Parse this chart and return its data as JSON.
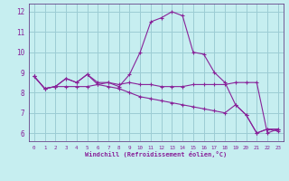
{
  "xlabel": "Windchill (Refroidissement éolien,°C)",
  "bg_color": "#c6eef0",
  "grid_color": "#9cccd4",
  "line_color": "#882299",
  "spine_color": "#664488",
  "xlim": [
    -0.5,
    23.5
  ],
  "ylim": [
    5.6,
    12.4
  ],
  "yticks": [
    6,
    7,
    8,
    9,
    10,
    11,
    12
  ],
  "xticks": [
    0,
    1,
    2,
    3,
    4,
    5,
    6,
    7,
    8,
    9,
    10,
    11,
    12,
    13,
    14,
    15,
    16,
    17,
    18,
    19,
    20,
    21,
    22,
    23
  ],
  "curves": [
    {
      "x": [
        0,
        1,
        2,
        3,
        4,
        5,
        6,
        7,
        8,
        9,
        10,
        11,
        12,
        13,
        14,
        15,
        16,
        17,
        18,
        19,
        20,
        21,
        22,
        23
      ],
      "y": [
        8.8,
        8.2,
        8.3,
        8.7,
        8.5,
        8.9,
        8.4,
        8.5,
        8.3,
        8.9,
        10.0,
        11.5,
        11.7,
        12.0,
        11.8,
        10.0,
        9.9,
        9.0,
        8.5,
        7.4,
        6.9,
        6.0,
        6.2,
        6.2
      ]
    },
    {
      "x": [
        0,
        1,
        2,
        3,
        4,
        5,
        6,
        7,
        8,
        9,
        10,
        11,
        12,
        13,
        14,
        15,
        16,
        17,
        18,
        19,
        20,
        21,
        22,
        23
      ],
      "y": [
        8.8,
        8.2,
        8.3,
        8.7,
        8.5,
        8.9,
        8.5,
        8.5,
        8.4,
        8.5,
        8.4,
        8.4,
        8.3,
        8.3,
        8.3,
        8.4,
        8.4,
        8.4,
        8.4,
        8.5,
        8.5,
        8.5,
        6.0,
        6.2
      ]
    },
    {
      "x": [
        0,
        1,
        2,
        3,
        4,
        5,
        6,
        7,
        8,
        9,
        10,
        11,
        12,
        13,
        14,
        15,
        16,
        17,
        18,
        19,
        20,
        21,
        22,
        23
      ],
      "y": [
        8.8,
        8.2,
        8.3,
        8.3,
        8.3,
        8.3,
        8.4,
        8.3,
        8.2,
        8.0,
        7.8,
        7.7,
        7.6,
        7.5,
        7.4,
        7.3,
        7.2,
        7.1,
        7.0,
        7.4,
        6.9,
        6.0,
        6.2,
        6.1
      ]
    }
  ]
}
